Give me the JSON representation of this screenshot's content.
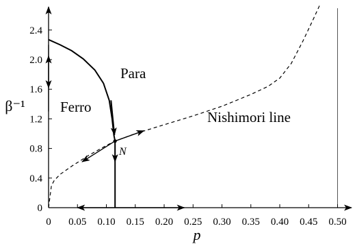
{
  "chart_data": {
    "type": "line",
    "title": "",
    "xlabel": "p",
    "ylabel": "β⁻¹",
    "xlim": [
      0,
      0.53
    ],
    "ylim": [
      0,
      2.75
    ],
    "x_ticks": [
      0,
      0.05,
      0.1,
      0.15,
      0.2,
      0.25,
      0.3,
      0.35,
      0.4,
      0.45,
      0.5
    ],
    "x_tick_labels": [
      "0",
      "0.05",
      "0.10",
      "0.15",
      "0.20",
      "0.25",
      "0.30",
      "0.35",
      "0.40",
      "0.45",
      "0.50"
    ],
    "y_ticks": [
      0,
      0.4,
      0.8,
      1.2,
      1.6,
      2.0,
      2.4
    ],
    "y_tick_labels": [
      "0",
      "0.4",
      "0.8",
      "1.2",
      "1.6",
      "2.0",
      "2.4"
    ],
    "vertical_reference_line_x": 0.5,
    "grid": false,
    "series": [
      {
        "style": "solid",
        "role": "ferro-para phase boundary",
        "x": [
          0,
          0.02,
          0.04,
          0.06,
          0.08,
          0.095,
          0.105,
          0.11,
          0.113,
          0.115,
          0.115
        ],
        "y": [
          2.27,
          2.2,
          2.12,
          2.01,
          1.86,
          1.68,
          1.45,
          1.2,
          0.98,
          0.9,
          0.0
        ]
      },
      {
        "style": "dashed",
        "role": "Nishimori line",
        "x": [
          0,
          0.005,
          0.01,
          0.02,
          0.04,
          0.07,
          0.1,
          0.115,
          0.15,
          0.2,
          0.25,
          0.3,
          0.35,
          0.38,
          0.4,
          0.42,
          0.44,
          0.46,
          0.47
        ],
        "y": [
          0,
          0.3,
          0.37,
          0.45,
          0.56,
          0.71,
          0.84,
          0.9,
          1.0,
          1.12,
          1.24,
          1.37,
          1.53,
          1.64,
          1.75,
          1.95,
          2.25,
          2.58,
          2.75
        ]
      }
    ],
    "annotations": {
      "ferro": "Ferro",
      "para": "Para",
      "nishimori": "Nishimori line",
      "fixed_point": "N"
    },
    "fixed_point": {
      "x": 0.115,
      "y": 0.9
    }
  }
}
